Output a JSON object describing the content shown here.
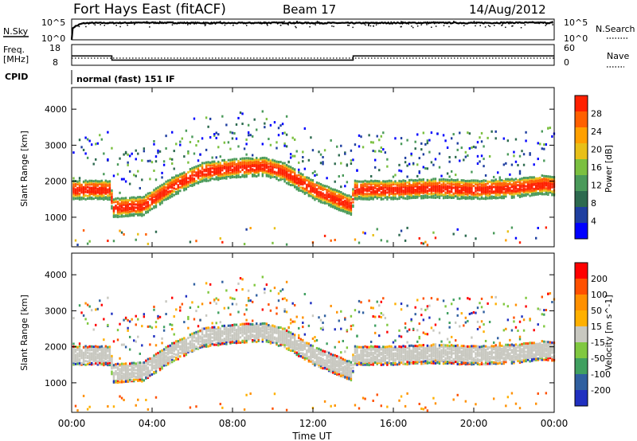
{
  "header": {
    "title": "Fort Hays East (fitACF)",
    "beam": "Beam 17",
    "date": "14/Aug/2012"
  },
  "left_labels": {
    "nsky": "N.Sky",
    "nsky_hi": "10^5",
    "nsky_lo": "10^0",
    "freq_line1": "Freq.",
    "freq_line2": "[MHz]",
    "freq_hi": "18",
    "freq_lo": "8",
    "cpid": "CPID"
  },
  "right_labels": {
    "nsearch": "N.Search",
    "nsearch_hi": "10^5",
    "nsearch_lo": "10^0",
    "nave": "Nave",
    "nave_hi": "60",
    "nave_lo": "0"
  },
  "cpid_text": "normal (fast) 151 IF",
  "time_axis": {
    "label": "Time UT",
    "ticks": [
      "00:00",
      "04:00",
      "08:00",
      "12:00",
      "16:00",
      "20:00",
      "00:00"
    ]
  },
  "colors": {
    "power_scale": [
      "#0000ff",
      "#1f3fa0",
      "#2d6a4f",
      "#4a9a5a",
      "#7bc040",
      "#e8c018",
      "#ffa000",
      "#ff6000",
      "#ff2000"
    ],
    "velocity_scale": [
      "#ff0000",
      "#ff5000",
      "#ff9000",
      "#ffb000",
      "#c8c8c0",
      "#80c840",
      "#40a060",
      "#3060a0",
      "#2030c0"
    ]
  },
  "chart_data": [
    {
      "type": "line",
      "title": "",
      "xlabel": "",
      "ylabel": "N.Sky",
      "xlim": [
        0,
        24
      ],
      "series": [
        {
          "name": "N.Sky",
          "x": [
            0,
            0.3,
            0.6,
            1,
            2,
            4,
            6,
            8,
            10,
            12,
            14,
            16,
            18,
            20,
            22,
            24
          ],
          "values": [
            1,
            3000,
            10000,
            12000,
            12000,
            14000,
            12000,
            11000,
            13000,
            12000,
            11000,
            12000,
            13000,
            12000,
            14000,
            13000
          ]
        }
      ]
    },
    {
      "type": "line",
      "title": "",
      "xlabel": "",
      "ylabel": "Freq. [MHz]",
      "ylim": [
        8,
        18
      ],
      "xlim": [
        0,
        24
      ],
      "series": [
        {
          "name": "Freq.",
          "x": [
            0,
            2,
            2,
            14,
            14,
            24
          ],
          "values": [
            12.5,
            12.5,
            10.5,
            10.5,
            12.5,
            12.5
          ]
        }
      ]
    },
    {
      "type": "heatmap",
      "title": "",
      "xlabel": "Time UT",
      "ylabel": "Slant Range [km]",
      "xlim": [
        0,
        24
      ],
      "ylim": [
        180,
        4600
      ],
      "yticks": [
        "1000",
        "2000",
        "3000",
        "4000"
      ],
      "colorbar": {
        "label": "Power [dB]",
        "ticks": [
          "4",
          "8",
          "12",
          "16",
          "20",
          "24",
          "28"
        ],
        "range": [
          0,
          30
        ]
      },
      "main_echo_band_km": {
        "x": [
          0,
          1.9,
          2.0,
          3.5,
          5.0,
          6.5,
          8.0,
          9.5,
          10.5,
          12.0,
          13.9,
          14.0,
          16.0,
          18.0,
          20.0,
          22.0,
          23.5,
          24.0
        ],
        "center": [
          1800,
          1800,
          1300,
          1350,
          1900,
          2300,
          2400,
          2450,
          2300,
          1800,
          1350,
          1800,
          1800,
          1850,
          1800,
          1850,
          1950,
          1900
        ]
      }
    },
    {
      "type": "heatmap",
      "title": "",
      "xlabel": "Time UT",
      "ylabel": "Slant Range [km]",
      "xlim": [
        0,
        24
      ],
      "ylim": [
        180,
        4600
      ],
      "yticks": [
        "1000",
        "2000",
        "3000",
        "4000"
      ],
      "colorbar": {
        "label": "Velocity [m s^-1]",
        "ticks": [
          "200",
          "100",
          "50",
          "15",
          "-15",
          "-50",
          "-100",
          "-200"
        ],
        "range": [
          -250,
          250
        ]
      }
    }
  ]
}
